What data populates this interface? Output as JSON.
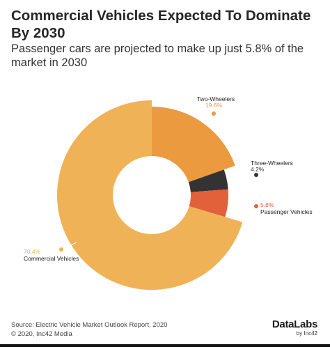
{
  "header": {
    "title": "Commercial Vehicles Expected To Dominate By 2030",
    "subtitle": "Passenger cars are projected to make up just 5.8% of the market in 2030"
  },
  "chart_data": {
    "type": "pie",
    "variant": "donut",
    "title": "Commercial Vehicles Expected To Dominate By 2030",
    "subtitle": "Passenger cars are projected to make up just 5.8% of the market in 2030",
    "series": [
      {
        "name": "Two-Wheelers",
        "value": 19.6,
        "label": "19.6%",
        "color": "#ec9a3f",
        "label_color": "#ec9a3f"
      },
      {
        "name": "Three-Wheelers",
        "value": 4.2,
        "label": "4.2%",
        "color": "#333333",
        "label_color": "#333333"
      },
      {
        "name": "Passenger Vehicles",
        "value": 5.8,
        "label": "5.8%",
        "color": "#e2603a",
        "label_color": "#e2603a"
      },
      {
        "name": "Commercial Vehicles",
        "value": 70.4,
        "label": "70.4%",
        "color": "#f0b256",
        "label_color": "#f0b256"
      }
    ]
  },
  "footer": {
    "source_line1": "Source: Electric Vehicle Market Outlook Report, 2020",
    "source_line2": "© 2020, Inc42 Media",
    "brand": "DataLabs",
    "brand_sub": "by Inc42"
  }
}
